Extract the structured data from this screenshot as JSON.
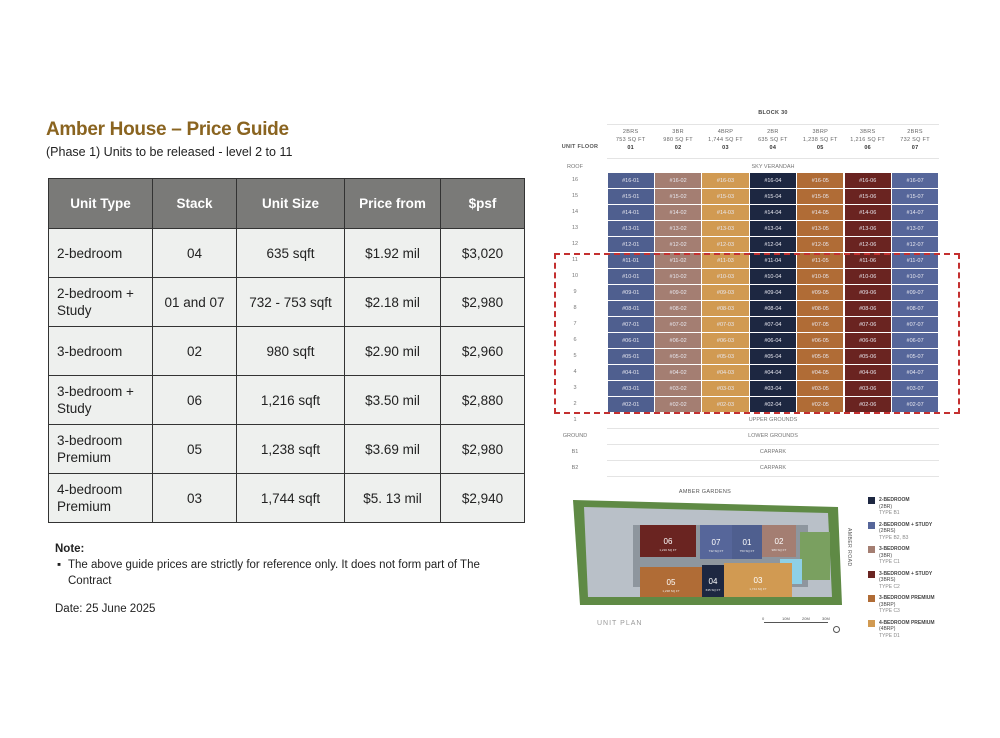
{
  "title": "Amber House – Price Guide",
  "subtitle": "(Phase 1) Units to be released - level 2 to 11",
  "table": {
    "headers": [
      "Unit Type",
      "Stack",
      "Unit Size",
      "Price from",
      "$psf"
    ],
    "rows": [
      [
        "2-bedroom",
        "04",
        "635 sqft",
        "$1.92 mil",
        "$3,020"
      ],
      [
        "2-bedroom + Study",
        "01 and 07",
        "732 - 753 sqft",
        "$2.18 mil",
        "$2,980"
      ],
      [
        "3-bedroom",
        "02",
        "980 sqft",
        "$2.90 mil",
        "$2,960"
      ],
      [
        "3-bedroom + Study",
        "06",
        "1,216 sqft",
        "$3.50 mil",
        "$2,880"
      ],
      [
        "3-bedroom Premium",
        "05",
        "1,238 sqft",
        "$3.69 mil",
        "$2,980"
      ],
      [
        "4-bedroom Premium",
        "03",
        "1,744 sqft",
        "$5. 13 mil",
        "$2,940"
      ]
    ]
  },
  "note": {
    "label": "Note:",
    "bullet": "▪",
    "text": "The above guide prices are strictly for reference only. It does not form part of The Contract"
  },
  "date": "Date: 25 June 2025",
  "elevation": {
    "block": "BLOCK 30",
    "unit_floor": "UNIT FLOOR",
    "stacks": [
      {
        "type": "2BRS",
        "size": "753 SQ FT",
        "no": "01",
        "color": "#4f5f8f"
      },
      {
        "type": "3BR",
        "size": "980 SQ FT",
        "no": "02",
        "color": "#a47e72"
      },
      {
        "type": "4BRP",
        "size": "1,744 SQ FT",
        "no": "03",
        "color": "#d19a52"
      },
      {
        "type": "2BR",
        "size": "635 SQ FT",
        "no": "04",
        "color": "#1d2741"
      },
      {
        "type": "3BRP",
        "size": "1,238 SQ FT",
        "no": "05",
        "color": "#b06c36"
      },
      {
        "type": "3BRS",
        "size": "1,216 SQ FT",
        "no": "06",
        "color": "#6a2421"
      },
      {
        "type": "2BRS",
        "size": "732 SQ FT",
        "no": "07",
        "color": "#56669a"
      }
    ],
    "roof": {
      "label": "ROOF",
      "text": "SKY VERANDAH"
    },
    "floors": [
      "16",
      "15",
      "14",
      "13",
      "12",
      "11",
      "10",
      "9",
      "8",
      "7",
      "6",
      "5",
      "4",
      "3",
      "2"
    ],
    "lower": [
      {
        "label": "1",
        "text": "UPPER GROUNDS"
      },
      {
        "label": "GROUND",
        "text": "LOWER GROUNDS"
      },
      {
        "label": "B1",
        "text": "CARPARK"
      },
      {
        "label": "B2",
        "text": "CARPARK"
      }
    ],
    "highlight_floors": "2 to 11",
    "highlight_color": "#c43030"
  },
  "site_plan": {
    "road_top": "AMBER GARDENS",
    "road_right": "AMBER ROAD",
    "caption": "UNIT PLAN",
    "scale": [
      "0",
      "10M",
      "20M",
      "30M"
    ],
    "units": [
      {
        "no": "06",
        "size": "1,216 SQ FT"
      },
      {
        "no": "07",
        "size": "732 SQ FT"
      },
      {
        "no": "01",
        "size": "753 SQ FT"
      },
      {
        "no": "02",
        "size": "980 SQ FT"
      },
      {
        "no": "05",
        "size": "1,238 SQ FT"
      },
      {
        "no": "04",
        "size": "635 SQ FT"
      },
      {
        "no": "03",
        "size": "1,744 SQ FT"
      }
    ]
  },
  "legend": [
    {
      "name": "2-BEDROOM",
      "code": "(2BR)",
      "type": "TYPE B1",
      "color": "#1d2741"
    },
    {
      "name": "2-BEDROOM + STUDY",
      "code": "(2BRS)",
      "type": "TYPE B2, B3",
      "color": "#56669a"
    },
    {
      "name": "3-BEDROOM",
      "code": "(3BR)",
      "type": "TYPE C1",
      "color": "#a47e72"
    },
    {
      "name": "3-BEDROOM + STUDY",
      "code": "(3BRS)",
      "type": "TYPE C2",
      "color": "#6a2421"
    },
    {
      "name": "3-BEDROOM PREMIUM",
      "code": "(3BRP)",
      "type": "TYPE C3",
      "color": "#b06c36"
    },
    {
      "name": "4-BEDROOM PREMIUM",
      "code": "(4BRP)",
      "type": "TYPE D1",
      "color": "#d19a52"
    }
  ]
}
